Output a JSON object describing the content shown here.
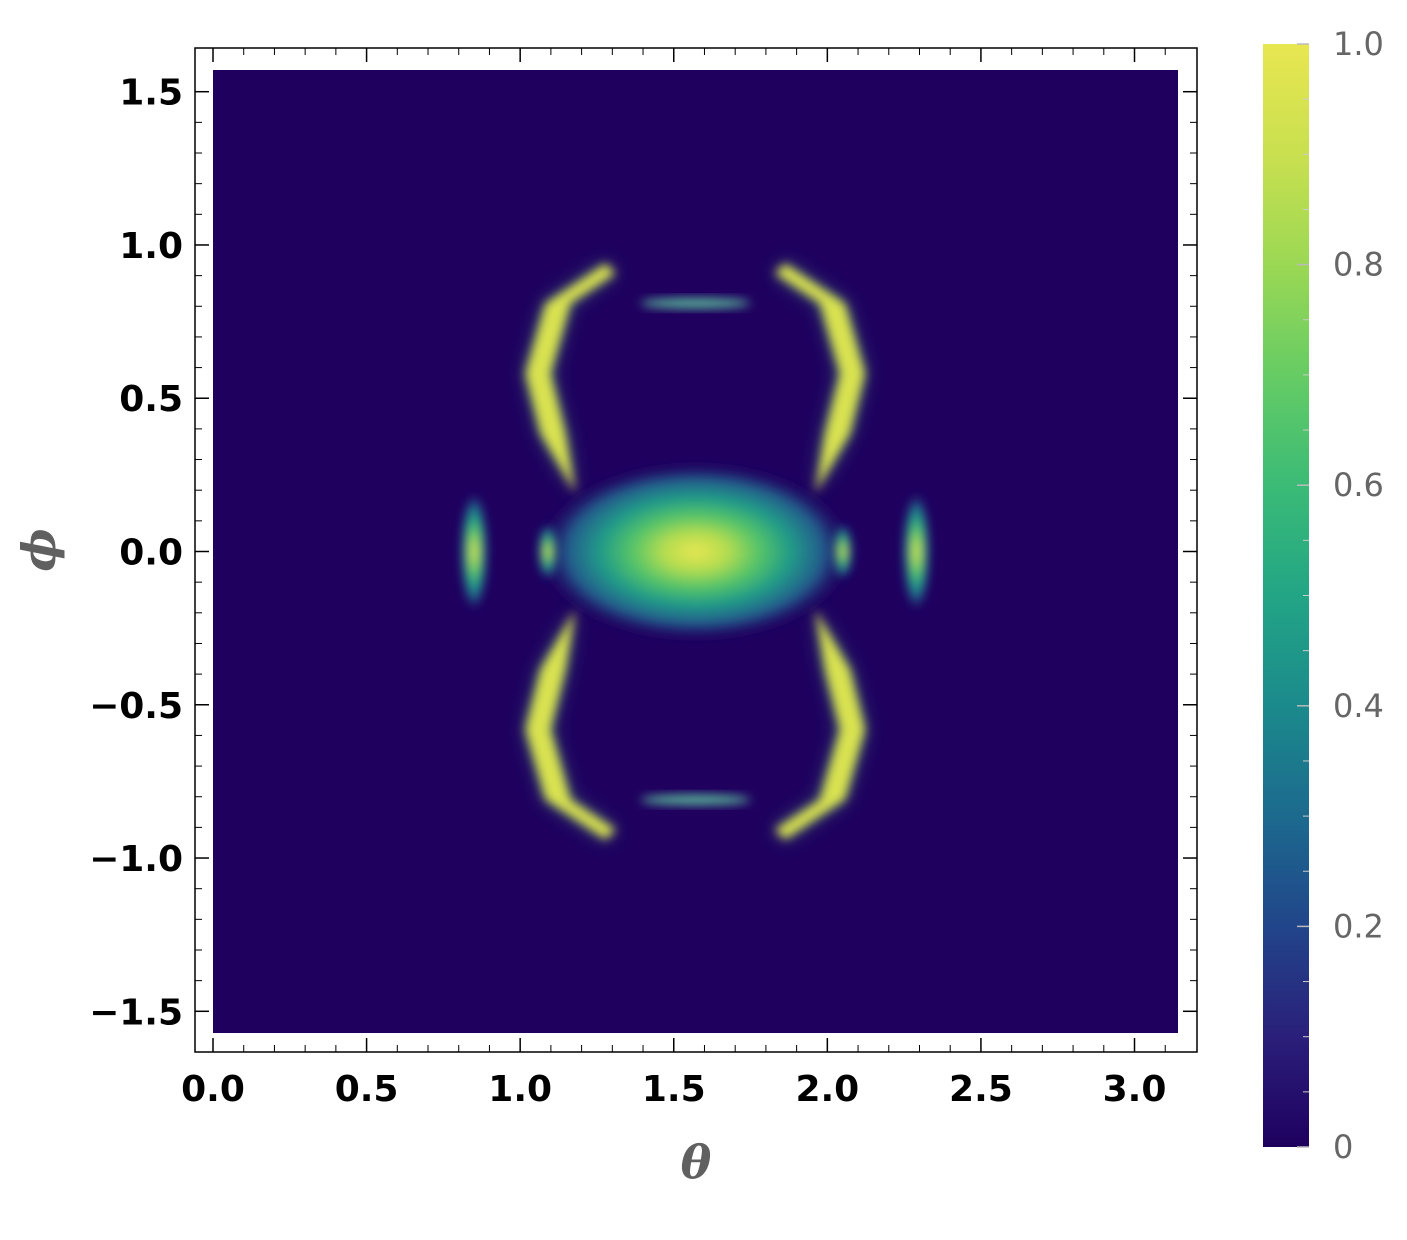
{
  "chart_data": {
    "type": "heatmap",
    "title": "",
    "xlabel": "θ",
    "ylabel": "ϕ",
    "xlim": [
      0,
      3.14159
    ],
    "ylim": [
      -1.5708,
      1.5708
    ],
    "x_ticks": [
      0.0,
      0.5,
      1.0,
      1.5,
      2.0,
      2.5,
      3.0
    ],
    "x_tick_labels": [
      "0.0",
      "0.5",
      "1.0",
      "1.5",
      "2.0",
      "2.5",
      "3.0"
    ],
    "y_ticks": [
      1.5,
      1.0,
      0.5,
      0.0,
      -0.5,
      -1.0,
      -1.5
    ],
    "y_tick_labels": [
      "1.5",
      "1.0",
      "0.5",
      "0.0",
      "−0.5",
      "−1.0",
      "−1.5"
    ],
    "colorbar": {
      "range": [
        0,
        1
      ],
      "ticks": [
        1.0,
        0.8,
        0.6,
        0.4,
        0.2,
        0
      ],
      "tick_labels": [
        "1.0",
        "0.8",
        "0.6",
        "0.4",
        "0.2",
        "0"
      ],
      "colormap": "viridis"
    },
    "features": [
      {
        "name": "central-ellipse",
        "theta": 1.5708,
        "phi": 0.0,
        "peak": 1.0
      },
      {
        "name": "arc-upper-left",
        "theta": 1.05,
        "phi": 0.45,
        "peak": 1.0
      },
      {
        "name": "arc-upper-right",
        "theta": 2.09,
        "phi": 0.45,
        "peak": 1.0
      },
      {
        "name": "arc-lower-left",
        "theta": 1.05,
        "phi": -0.45,
        "peak": 1.0
      },
      {
        "name": "arc-lower-right",
        "theta": 2.09,
        "phi": -0.45,
        "peak": 1.0
      },
      {
        "name": "side-spot-left",
        "theta": 0.85,
        "phi": 0.0,
        "peak": 0.95
      },
      {
        "name": "side-spot-right",
        "theta": 2.29,
        "phi": 0.0,
        "peak": 0.95
      },
      {
        "name": "inner-spot-left",
        "theta": 1.09,
        "phi": 0.0,
        "peak": 0.9
      },
      {
        "name": "inner-spot-right",
        "theta": 2.05,
        "phi": 0.0,
        "peak": 0.9
      },
      {
        "name": "top-band",
        "theta": 1.5708,
        "phi": 0.81,
        "peak": 0.7
      },
      {
        "name": "bottom-band",
        "theta": 1.5708,
        "phi": -0.81,
        "peak": 0.7
      }
    ]
  }
}
